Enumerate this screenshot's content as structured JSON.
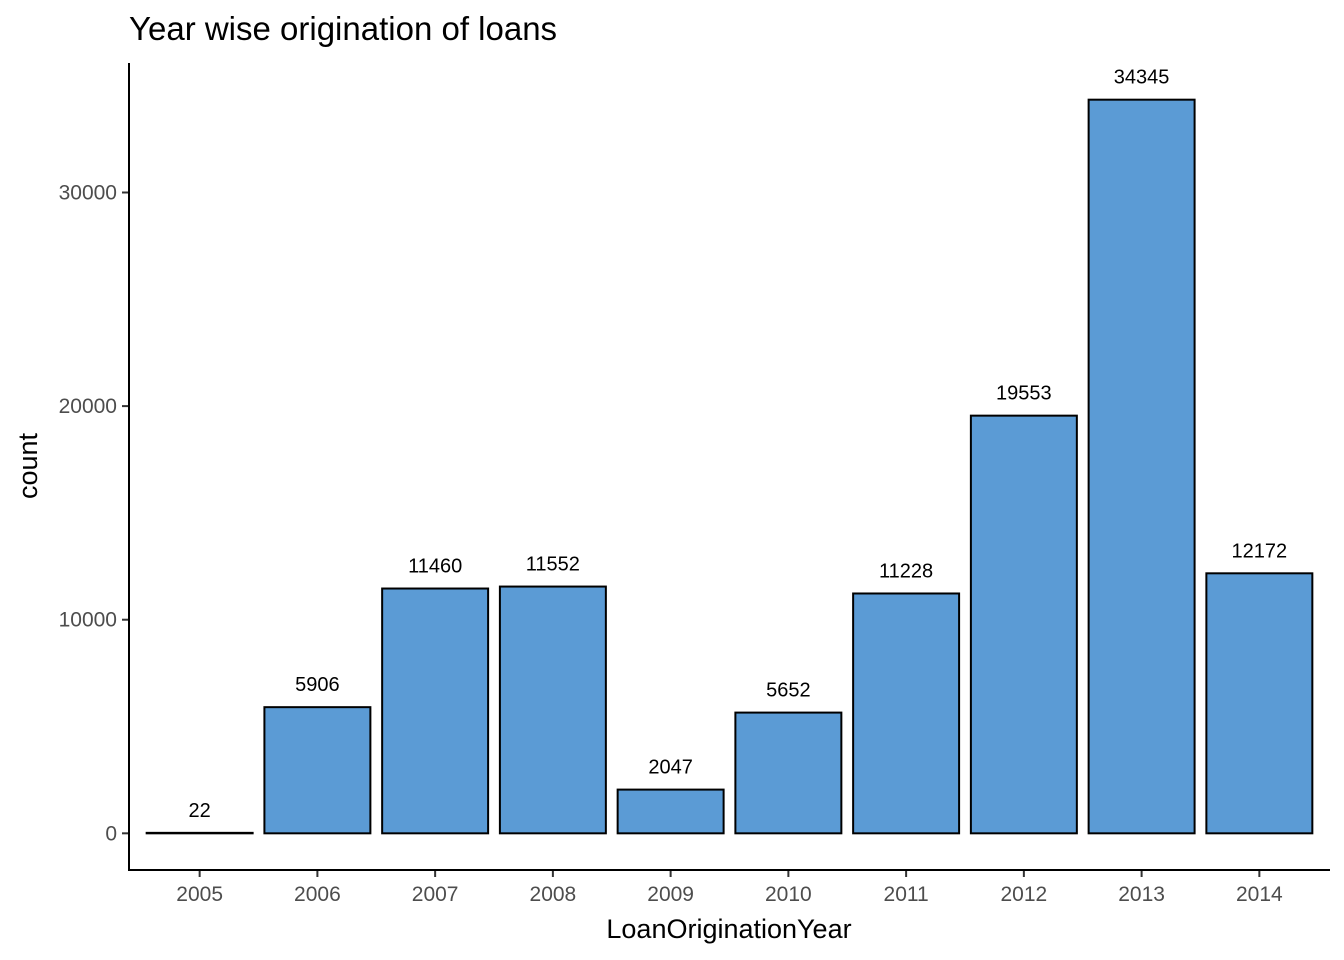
{
  "chart_data": {
    "type": "bar",
    "title": "Year wise origination of loans",
    "xlabel": "LoanOriginationYear",
    "ylabel": "count",
    "categories": [
      "2005",
      "2006",
      "2007",
      "2008",
      "2009",
      "2010",
      "2011",
      "2012",
      "2013",
      "2014"
    ],
    "values": [
      22,
      5906,
      11460,
      11552,
      2047,
      5652,
      11228,
      19553,
      34345,
      12172
    ],
    "data_labels": [
      "22",
      "5906",
      "11460",
      "11552",
      "2047",
      "5652",
      "11228",
      "19553",
      "34345",
      "12172"
    ],
    "y_ticks": [
      0,
      10000,
      20000,
      30000
    ],
    "y_tick_labels": [
      "0",
      "10000",
      "20000",
      "30000"
    ],
    "ylim": [
      -1717,
      36062
    ],
    "grid": false,
    "legend": "none",
    "bar_color": "#5b9bd5",
    "bar_outline_color": "#000000"
  }
}
